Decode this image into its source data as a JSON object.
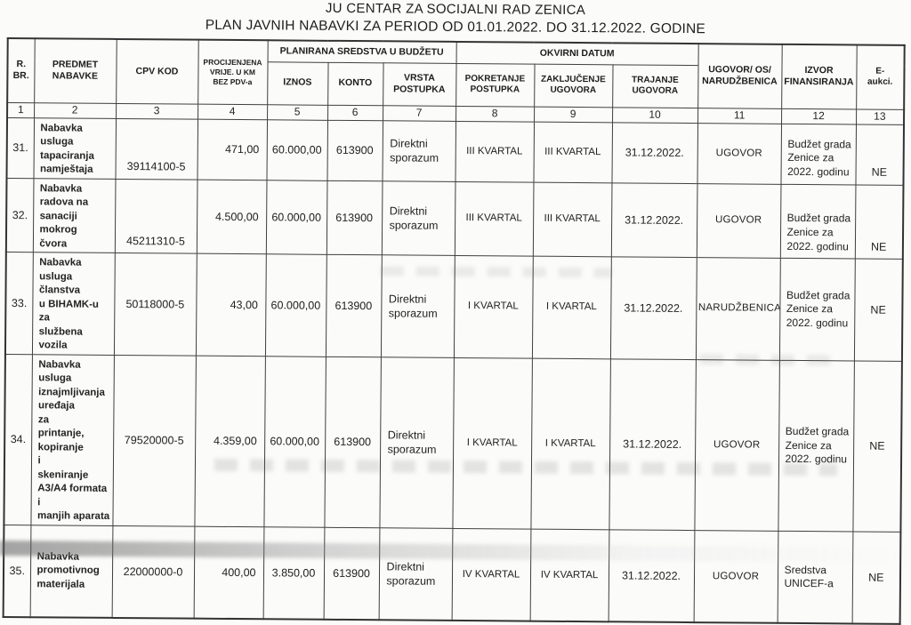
{
  "title": {
    "line1": "JU CENTAR ZA SOCIJALNI RAD ZENICA",
    "line2": "PLAN JAVNIH NABAVKI ZA PERIOD OD 01.01.2022. DO 31.12.2022. GODINE"
  },
  "table": {
    "headers": {
      "rbr": "R.\nBR.",
      "predmet": "PREDMET\nNABAVKE",
      "cpv": "CPV KOD",
      "procijenjena": "PROCIJENJENA\nVRIJE. U KM\nBEZ PDV-a",
      "planirana_group": "PLANIRANA SREDSTVA U BUDŽETU",
      "iznos": "IZNOS",
      "konto": "KONTO",
      "vrsta": "VRSTA\nPOSTUPKA",
      "okvirni_group": "OKVIRNI DATUM",
      "pokretanje": "POKRETANJE\nPOSTUPKA",
      "zakljucenje": "ZAKLJUČENJE\nUGOVORA",
      "trajanje": "TRAJANJE\nUGOVORA",
      "ugovor": "UGOVOR/ OS/\nNARUDŽBENICA",
      "izvor": "IZVOR\nFINANSIRANJA",
      "eaukcija": "E-\naukci."
    },
    "column_numbers": [
      "1",
      "2",
      "3",
      "4",
      "5",
      "6",
      "7",
      "8",
      "9",
      "10",
      "11",
      "12",
      "13"
    ],
    "rows": [
      {
        "rbr": "31.",
        "predmet": "Nabavka usluga\ntapaciranja\nnamještaja",
        "cpv": "39114100-5",
        "vrijednost": "471,00",
        "iznos": "60.000,00",
        "konto": "613900",
        "vrsta": "Direktni sporazum",
        "pokretanje": "III KVARTAL",
        "zakljucenje": "III KVARTAL",
        "trajanje": "31.12.2022.",
        "ugovor": "UGOVOR",
        "izvor": "Budžet grada\nZenice za\n2022. godinu",
        "eaukcija": "NE"
      },
      {
        "rbr": "32.",
        "predmet": "Nabavka\nradova na\nsanaciji mokrog\nčvora",
        "cpv": "45211310-5",
        "vrijednost": "4.500,00",
        "iznos": "60.000,00",
        "konto": "613900",
        "vrsta": "Direktni sporazum",
        "pokretanje": "III KVARTAL",
        "zakljucenje": "III KVARTAL",
        "trajanje": "31.12.2022.",
        "ugovor": "UGOVOR",
        "izvor": "Budžet grada\nZenice za\n2022. godinu",
        "eaukcija": "NE"
      },
      {
        "rbr": "33.",
        "predmet": "Nabavka usluga\nčlanstva\nu BIHAMK-u za\nslužbena vozila",
        "cpv": "50118000-5",
        "vrijednost": "43,00",
        "iznos": "60.000,00",
        "konto": "613900",
        "vrsta": "Direktni sporazum",
        "pokretanje": "I KVARTAL",
        "zakljucenje": "I KVARTAL",
        "trajanje": "31.12.2022.",
        "ugovor": "NARUDŽBENICA",
        "izvor": "Budžet grada\nZenice za\n2022. godinu",
        "eaukcija": "NE"
      },
      {
        "rbr": "34.",
        "predmet": "Nabavka usluga\niznajmljivanja\nuređaja\nza\nprintanje,\nkopiranje\ni\nskeniranje\nA3/A4 formata i\nmanjih aparata",
        "cpv": "79520000-5",
        "vrijednost": "4.359,00",
        "iznos": "60.000,00",
        "konto": "613900",
        "vrsta": "Direktni sporazum",
        "pokretanje": "I KVARTAL",
        "zakljucenje": "I KVARTAL",
        "trajanje": "31.12.2022.",
        "ugovor": "UGOVOR",
        "izvor": "Budžet grada\nZenice za\n2022. godinu",
        "eaukcija": "NE"
      },
      {
        "rbr": "35.",
        "predmet": "Nabavka\npromotivnog\nmaterijala",
        "cpv": "22000000-0",
        "vrijednost": "400,00",
        "iznos": "3.850,00",
        "konto": "613900",
        "vrsta": "Direktni sporazum",
        "pokretanje": "IV KVARTAL",
        "zakljucenje": "IV KVARTAL",
        "trajanje": "31.12.2022.",
        "ugovor": "UGOVOR",
        "izvor": "Sredstva\nUNICEF-a",
        "eaukcija": "NE"
      }
    ]
  }
}
